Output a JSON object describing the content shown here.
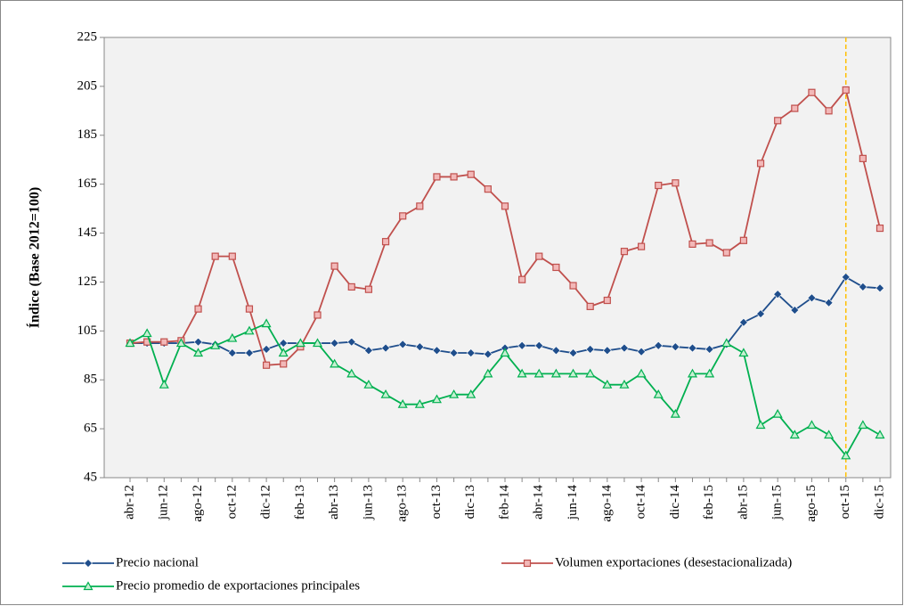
{
  "chart_data": {
    "type": "line",
    "y_label": "Índice (Base 2012=100)",
    "categories": [
      "abr-12",
      null,
      "jun-12",
      null,
      "ago-12",
      null,
      "oct-12",
      null,
      "dic-12",
      null,
      "feb-13",
      null,
      "abr-13",
      null,
      "jun-13",
      null,
      "ago-13",
      null,
      "oct-13",
      null,
      "dic-13",
      null,
      "feb-14",
      null,
      "abr-14",
      null,
      "jun-14",
      null,
      "ago-14",
      null,
      "oct-14",
      null,
      "dic-14",
      null,
      "feb-15",
      null,
      "abr-15",
      null,
      "jun-15",
      null,
      "ago-15",
      null,
      "oct-15",
      null,
      "dic-15"
    ],
    "series": [
      {
        "name": "Precio nacional",
        "color": "#1f4e8c",
        "marker": "diamond",
        "values": [
          100,
          100,
          100,
          100,
          100.5,
          99.5,
          96,
          96,
          97.5,
          100,
          100,
          100,
          100,
          100.5,
          97,
          98,
          99.5,
          98.5,
          97,
          96,
          96,
          95.5,
          98,
          99,
          99,
          97,
          96,
          97.5,
          97,
          98,
          96.5,
          99,
          98.5,
          98,
          97.5,
          99.5,
          108.5,
          112,
          120,
          113.5,
          118.5,
          116.5,
          127,
          123,
          122.5
        ]
      },
      {
        "name": "Volumen exportaciones (desestacionalizada)",
        "color": "#c0504d",
        "marker": "square",
        "values": [
          100,
          100.5,
          100.5,
          101,
          114,
          135.5,
          135.5,
          114,
          91,
          91.5,
          98.5,
          111.5,
          131.5,
          123,
          122,
          141.5,
          152,
          156,
          168,
          168,
          169,
          163,
          156,
          126,
          135.5,
          131,
          123.5,
          115,
          117.5,
          137.5,
          139.5,
          164.5,
          165.5,
          140.5,
          141,
          137,
          142,
          173.5,
          191,
          196,
          202.5,
          195,
          203.5,
          175.5,
          147
        ]
      },
      {
        "name": "Precio promedio de exportaciones principales",
        "color": "#00b050",
        "marker": "triangle",
        "values": [
          100,
          104,
          83,
          100,
          96,
          99,
          102,
          105,
          108,
          96,
          100,
          100,
          91.5,
          87.5,
          83,
          79,
          75,
          75,
          77,
          79,
          79,
          87.5,
          96,
          87.5,
          87.5,
          87.5,
          87.5,
          87.5,
          83,
          83,
          87.5,
          79,
          71,
          87.5,
          87.5,
          100,
          96,
          66.5,
          71,
          62.5,
          66.5,
          62.5,
          54,
          66.5,
          62.5
        ]
      }
    ],
    "ylim": [
      45,
      225
    ],
    "yticks": [
      45,
      65,
      85,
      105,
      125,
      145,
      165,
      185,
      205,
      225
    ],
    "grid": false,
    "marker_line": {
      "category": "oct-15",
      "color": "#ffc000"
    }
  }
}
